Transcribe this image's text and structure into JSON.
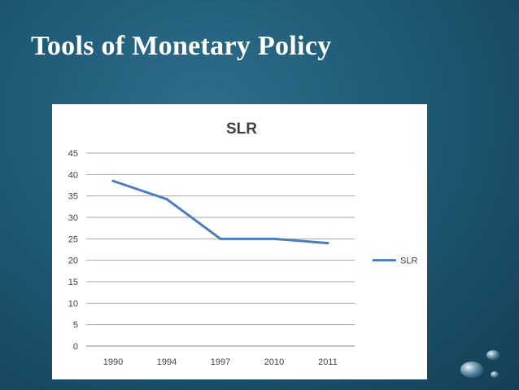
{
  "slide": {
    "title": "Tools of Monetary Policy"
  },
  "colors": {
    "line": "#4a7ebb",
    "grid": "#a6a6a6",
    "text": "#404040"
  },
  "chart_data": {
    "type": "line",
    "title": "SLR",
    "categories": [
      "1990",
      "1994",
      "1997",
      "2010",
      "2011"
    ],
    "series": [
      {
        "name": "SLR",
        "values": [
          38.5,
          34.25,
          25,
          25,
          24
        ]
      }
    ],
    "xlabel": "",
    "ylabel": "",
    "ylim": [
      0,
      45
    ],
    "yticks": [
      0,
      5,
      10,
      15,
      20,
      25,
      30,
      35,
      40,
      45
    ],
    "grid": true,
    "legend": "right"
  }
}
